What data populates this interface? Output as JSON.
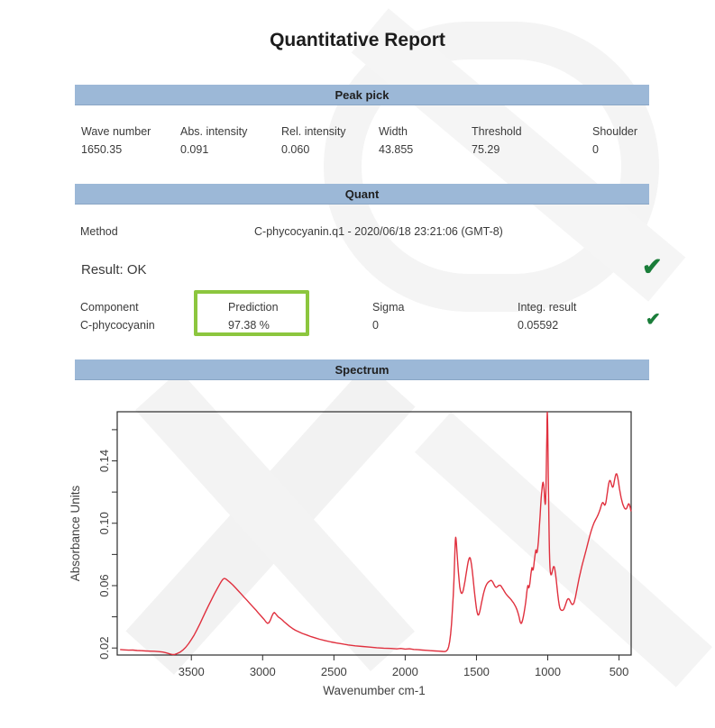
{
  "report": {
    "title": "Quantitative Report"
  },
  "sections": {
    "peak_pick": "Peak pick",
    "quant": "Quant",
    "spectrum": "Spectrum"
  },
  "peak_table": {
    "headers": [
      "Wave number",
      "Abs. intensity",
      "Rel. intensity",
      "Width",
      "Threshold",
      "Shoulder"
    ],
    "values": [
      "1650.35",
      "0.091",
      "0.060",
      "43.855",
      "75.29",
      "0"
    ]
  },
  "quant": {
    "method_label": "Method",
    "method_value": "C-phycocyanin.q1 - 2020/06/18 23:21:06 (GMT-8)",
    "result_text": "Result: OK",
    "component_headers": [
      "Component",
      "Prediction",
      "Sigma",
      "Integ. result"
    ],
    "component_values": [
      "C-phycocyanin",
      "97.38 %",
      "0",
      "0.05592"
    ],
    "check_glyph": "✔"
  },
  "colors": {
    "bar": "#9cb8d7",
    "bar-edge": "#8aa6c5",
    "line": "#e0303e",
    "check": "#1a7d39",
    "highlight": "#8cc63e",
    "text": "#3a3a3a"
  },
  "chart_data": {
    "type": "line",
    "title": "",
    "xlabel": "Wavenumber cm-1",
    "ylabel": "Absorbance Units",
    "legend": "none",
    "grid": false,
    "x_axis_reversed": true,
    "x_range": [
      4020,
      415
    ],
    "y_range": [
      0.0155,
      0.1715
    ],
    "x_ticks": [
      3500,
      3000,
      2500,
      2000,
      1500,
      1000,
      500
    ],
    "y_ticks": [
      0.02,
      0.06,
      0.1,
      0.14
    ],
    "y_minor_ticks": [
      0.02,
      0.04,
      0.06,
      0.08,
      0.1,
      0.12,
      0.14,
      0.16
    ],
    "line_color": "#e0303e",
    "points": [
      [
        4000,
        0.019
      ],
      [
        3970,
        0.0188
      ],
      [
        3940,
        0.0186
      ],
      [
        3910,
        0.0187
      ],
      [
        3880,
        0.0184
      ],
      [
        3850,
        0.0183
      ],
      [
        3820,
        0.0181
      ],
      [
        3790,
        0.018
      ],
      [
        3760,
        0.0179
      ],
      [
        3730,
        0.0177
      ],
      [
        3700,
        0.0174
      ],
      [
        3680,
        0.017
      ],
      [
        3660,
        0.0165
      ],
      [
        3645,
        0.0161
      ],
      [
        3630,
        0.0158
      ],
      [
        3615,
        0.0159
      ],
      [
        3600,
        0.0164
      ],
      [
        3580,
        0.0173
      ],
      [
        3560,
        0.0186
      ],
      [
        3540,
        0.0204
      ],
      [
        3520,
        0.0227
      ],
      [
        3500,
        0.0254
      ],
      [
        3480,
        0.0284
      ],
      [
        3460,
        0.0318
      ],
      [
        3440,
        0.0355
      ],
      [
        3420,
        0.0394
      ],
      [
        3400,
        0.0433
      ],
      [
        3380,
        0.0471
      ],
      [
        3360,
        0.0508
      ],
      [
        3340,
        0.0544
      ],
      [
        3320,
        0.0578
      ],
      [
        3300,
        0.061
      ],
      [
        3290,
        0.0626
      ],
      [
        3280,
        0.0639
      ],
      [
        3270,
        0.0646
      ],
      [
        3260,
        0.0644
      ],
      [
        3250,
        0.0637
      ],
      [
        3230,
        0.0622
      ],
      [
        3210,
        0.0605
      ],
      [
        3190,
        0.0586
      ],
      [
        3170,
        0.0566
      ],
      [
        3150,
        0.0546
      ],
      [
        3130,
        0.0526
      ],
      [
        3110,
        0.0506
      ],
      [
        3090,
        0.0486
      ],
      [
        3070,
        0.0466
      ],
      [
        3050,
        0.0446
      ],
      [
        3030,
        0.0425
      ],
      [
        3010,
        0.0404
      ],
      [
        2990,
        0.0383
      ],
      [
        2975,
        0.0366
      ],
      [
        2965,
        0.0358
      ],
      [
        2955,
        0.0363
      ],
      [
        2945,
        0.0381
      ],
      [
        2935,
        0.0405
      ],
      [
        2925,
        0.0422
      ],
      [
        2918,
        0.0428
      ],
      [
        2910,
        0.0421
      ],
      [
        2900,
        0.0409
      ],
      [
        2890,
        0.0399
      ],
      [
        2880,
        0.0393
      ],
      [
        2870,
        0.0386
      ],
      [
        2860,
        0.0378
      ],
      [
        2850,
        0.0369
      ],
      [
        2830,
        0.0353
      ],
      [
        2810,
        0.0338
      ],
      [
        2790,
        0.0325
      ],
      [
        2770,
        0.0314
      ],
      [
        2750,
        0.0305
      ],
      [
        2720,
        0.0293
      ],
      [
        2690,
        0.0283
      ],
      [
        2660,
        0.0273
      ],
      [
        2630,
        0.0264
      ],
      [
        2600,
        0.0256
      ],
      [
        2560,
        0.0247
      ],
      [
        2520,
        0.0239
      ],
      [
        2480,
        0.0232
      ],
      [
        2440,
        0.0226
      ],
      [
        2400,
        0.022
      ],
      [
        2350,
        0.0214
      ],
      [
        2300,
        0.021
      ],
      [
        2250,
        0.0206
      ],
      [
        2200,
        0.0202
      ],
      [
        2150,
        0.0199
      ],
      [
        2100,
        0.0197
      ],
      [
        2060,
        0.0194
      ],
      [
        2030,
        0.0197
      ],
      [
        2000,
        0.0193
      ],
      [
        1970,
        0.0195
      ],
      [
        1940,
        0.0191
      ],
      [
        1910,
        0.0189
      ],
      [
        1880,
        0.0187
      ],
      [
        1850,
        0.0185
      ],
      [
        1820,
        0.0183
      ],
      [
        1790,
        0.0181
      ],
      [
        1765,
        0.018
      ],
      [
        1740,
        0.0178
      ],
      [
        1725,
        0.0177
      ],
      [
        1712,
        0.018
      ],
      [
        1702,
        0.019
      ],
      [
        1695,
        0.0208
      ],
      [
        1688,
        0.024
      ],
      [
        1681,
        0.029
      ],
      [
        1675,
        0.0355
      ],
      [
        1669,
        0.0438
      ],
      [
        1663,
        0.0535
      ],
      [
        1658,
        0.0638
      ],
      [
        1654,
        0.0742
      ],
      [
        1651,
        0.083
      ],
      [
        1648,
        0.089
      ],
      [
        1646,
        0.091
      ],
      [
        1644,
        0.0903
      ],
      [
        1641,
        0.0872
      ],
      [
        1637,
        0.0818
      ],
      [
        1632,
        0.075
      ],
      [
        1627,
        0.0688
      ],
      [
        1622,
        0.0634
      ],
      [
        1617,
        0.0592
      ],
      [
        1612,
        0.0566
      ],
      [
        1607,
        0.0553
      ],
      [
        1602,
        0.055
      ],
      [
        1597,
        0.0557
      ],
      [
        1592,
        0.0573
      ],
      [
        1586,
        0.06
      ],
      [
        1580,
        0.0631
      ],
      [
        1574,
        0.0665
      ],
      [
        1568,
        0.0701
      ],
      [
        1562,
        0.0733
      ],
      [
        1557,
        0.0757
      ],
      [
        1552,
        0.0773
      ],
      [
        1548,
        0.078
      ],
      [
        1544,
        0.0777
      ],
      [
        1540,
        0.0763
      ],
      [
        1535,
        0.0736
      ],
      [
        1530,
        0.07
      ],
      [
        1525,
        0.0658
      ],
      [
        1520,
        0.0612
      ],
      [
        1515,
        0.0566
      ],
      [
        1510,
        0.0524
      ],
      [
        1505,
        0.0486
      ],
      [
        1500,
        0.0455
      ],
      [
        1496,
        0.0432
      ],
      [
        1492,
        0.0418
      ],
      [
        1488,
        0.0411
      ],
      [
        1484,
        0.0413
      ],
      [
        1480,
        0.0423
      ],
      [
        1475,
        0.0441
      ],
      [
        1470,
        0.0464
      ],
      [
        1464,
        0.0491
      ],
      [
        1458,
        0.0518
      ],
      [
        1452,
        0.0543
      ],
      [
        1446,
        0.0565
      ],
      [
        1440,
        0.0583
      ],
      [
        1434,
        0.0598
      ],
      [
        1428,
        0.0609
      ],
      [
        1422,
        0.0617
      ],
      [
        1416,
        0.0623
      ],
      [
        1410,
        0.0627
      ],
      [
        1404,
        0.0631
      ],
      [
        1398,
        0.0634
      ],
      [
        1392,
        0.0631
      ],
      [
        1386,
        0.0623
      ],
      [
        1380,
        0.0613
      ],
      [
        1374,
        0.0601
      ],
      [
        1368,
        0.0593
      ],
      [
        1362,
        0.0589
      ],
      [
        1356,
        0.0591
      ],
      [
        1350,
        0.0596
      ],
      [
        1344,
        0.0601
      ],
      [
        1338,
        0.0603
      ],
      [
        1332,
        0.0601
      ],
      [
        1326,
        0.0595
      ],
      [
        1320,
        0.0586
      ],
      [
        1312,
        0.0575
      ],
      [
        1304,
        0.0563
      ],
      [
        1296,
        0.0551
      ],
      [
        1288,
        0.0541
      ],
      [
        1280,
        0.0533
      ],
      [
        1272,
        0.0525
      ],
      [
        1264,
        0.0517
      ],
      [
        1256,
        0.0509
      ],
      [
        1248,
        0.0499
      ],
      [
        1240,
        0.0489
      ],
      [
        1232,
        0.0477
      ],
      [
        1224,
        0.0463
      ],
      [
        1216,
        0.0445
      ],
      [
        1210,
        0.0429
      ],
      [
        1205,
        0.0413
      ],
      [
        1200,
        0.0395
      ],
      [
        1196,
        0.0377
      ],
      [
        1192,
        0.0364
      ],
      [
        1188,
        0.0358
      ],
      [
        1184,
        0.0359
      ],
      [
        1180,
        0.0367
      ],
      [
        1175,
        0.0383
      ],
      [
        1170,
        0.0405
      ],
      [
        1165,
        0.0431
      ],
      [
        1160,
        0.046
      ],
      [
        1155,
        0.0491
      ],
      [
        1151,
        0.0521
      ],
      [
        1148,
        0.0549
      ],
      [
        1145,
        0.0573
      ],
      [
        1142,
        0.0591
      ],
      [
        1139,
        0.0601
      ],
      [
        1136,
        0.0596
      ],
      [
        1133,
        0.0586
      ],
      [
        1130,
        0.0591
      ],
      [
        1126,
        0.0611
      ],
      [
        1122,
        0.0641
      ],
      [
        1118,
        0.0673
      ],
      [
        1114,
        0.0701
      ],
      [
        1111,
        0.0716
      ],
      [
        1108,
        0.0711
      ],
      [
        1105,
        0.0699
      ],
      [
        1102,
        0.0703
      ],
      [
        1098,
        0.0726
      ],
      [
        1094,
        0.0759
      ],
      [
        1090,
        0.0791
      ],
      [
        1086,
        0.0816
      ],
      [
        1083,
        0.0829
      ],
      [
        1080,
        0.0823
      ],
      [
        1077,
        0.0811
      ],
      [
        1074,
        0.0816
      ],
      [
        1070,
        0.0841
      ],
      [
        1066,
        0.0881
      ],
      [
        1062,
        0.0931
      ],
      [
        1058,
        0.0986
      ],
      [
        1054,
        0.1046
      ],
      [
        1050,
        0.1106
      ],
      [
        1046,
        0.1161
      ],
      [
        1042,
        0.1206
      ],
      [
        1038,
        0.1241
      ],
      [
        1035,
        0.1259
      ],
      [
        1032,
        0.1263
      ],
      [
        1029,
        0.1249
      ],
      [
        1026,
        0.1216
      ],
      [
        1023,
        0.1173
      ],
      [
        1020,
        0.1136
      ],
      [
        1018,
        0.1121
      ],
      [
        1016,
        0.1131
      ],
      [
        1014,
        0.1171
      ],
      [
        1012,
        0.1241
      ],
      [
        1010,
        0.1341
      ],
      [
        1008,
        0.1461
      ],
      [
        1006,
        0.1581
      ],
      [
        1005,
        0.1656
      ],
      [
        1004,
        0.1701
      ],
      [
        1003,
        0.1712
      ],
      [
        1002,
        0.1691
      ],
      [
        1000,
        0.1601
      ],
      [
        998,
        0.1461
      ],
      [
        996,
        0.1301
      ],
      [
        994,
        0.1146
      ],
      [
        992,
        0.1011
      ],
      [
        990,
        0.0901
      ],
      [
        988,
        0.0816
      ],
      [
        986,
        0.0756
      ],
      [
        984,
        0.0716
      ],
      [
        982,
        0.0691
      ],
      [
        980,
        0.0676
      ],
      [
        977,
        0.0669
      ],
      [
        974,
        0.0671
      ],
      [
        970,
        0.0683
      ],
      [
        966,
        0.0701
      ],
      [
        962,
        0.0716
      ],
      [
        958,
        0.0723
      ],
      [
        954,
        0.0719
      ],
      [
        950,
        0.0703
      ],
      [
        945,
        0.0673
      ],
      [
        940,
        0.0633
      ],
      [
        935,
        0.0589
      ],
      [
        930,
        0.0545
      ],
      [
        925,
        0.0507
      ],
      [
        920,
        0.0477
      ],
      [
        915,
        0.0457
      ],
      [
        910,
        0.0447
      ],
      [
        905,
        0.0443
      ],
      [
        900,
        0.0441
      ],
      [
        895,
        0.0442
      ],
      [
        890,
        0.0445
      ],
      [
        885,
        0.0453
      ],
      [
        880,
        0.0465
      ],
      [
        875,
        0.0479
      ],
      [
        870,
        0.0493
      ],
      [
        865,
        0.0505
      ],
      [
        860,
        0.0513
      ],
      [
        855,
        0.0516
      ],
      [
        850,
        0.0513
      ],
      [
        845,
        0.0505
      ],
      [
        840,
        0.0495
      ],
      [
        835,
        0.0486
      ],
      [
        830,
        0.048
      ],
      [
        825,
        0.0479
      ],
      [
        820,
        0.0483
      ],
      [
        815,
        0.0493
      ],
      [
        810,
        0.0509
      ],
      [
        805,
        0.0529
      ],
      [
        800,
        0.0553
      ],
      [
        793,
        0.0586
      ],
      [
        786,
        0.0619
      ],
      [
        779,
        0.0651
      ],
      [
        772,
        0.0681
      ],
      [
        765,
        0.0709
      ],
      [
        758,
        0.0735
      ],
      [
        751,
        0.0759
      ],
      [
        744,
        0.0783
      ],
      [
        737,
        0.0807
      ],
      [
        730,
        0.0831
      ],
      [
        723,
        0.0856
      ],
      [
        716,
        0.0881
      ],
      [
        709,
        0.0906
      ],
      [
        702,
        0.0929
      ],
      [
        695,
        0.0951
      ],
      [
        688,
        0.0971
      ],
      [
        681,
        0.0989
      ],
      [
        674,
        0.1005
      ],
      [
        667,
        0.1019
      ],
      [
        660,
        0.1031
      ],
      [
        653,
        0.1043
      ],
      [
        646,
        0.1057
      ],
      [
        639,
        0.1073
      ],
      [
        632,
        0.1091
      ],
      [
        626,
        0.1109
      ],
      [
        621,
        0.1123
      ],
      [
        617,
        0.1131
      ],
      [
        613,
        0.1133
      ],
      [
        609,
        0.1129
      ],
      [
        605,
        0.1121
      ],
      [
        601,
        0.1116
      ],
      [
        597,
        0.1119
      ],
      [
        593,
        0.1131
      ],
      [
        589,
        0.1151
      ],
      [
        585,
        0.1176
      ],
      [
        581,
        0.1203
      ],
      [
        577,
        0.1229
      ],
      [
        573,
        0.1251
      ],
      [
        569,
        0.1267
      ],
      [
        565,
        0.1275
      ],
      [
        561,
        0.1273
      ],
      [
        557,
        0.1263
      ],
      [
        553,
        0.1249
      ],
      [
        549,
        0.1237
      ],
      [
        545,
        0.1231
      ],
      [
        541,
        0.1235
      ],
      [
        537,
        0.1249
      ],
      [
        533,
        0.1269
      ],
      [
        529,
        0.1289
      ],
      [
        525,
        0.1305
      ],
      [
        521,
        0.1315
      ],
      [
        517,
        0.1317
      ],
      [
        513,
        0.1309
      ],
      [
        509,
        0.1293
      ],
      [
        505,
        0.1271
      ],
      [
        501,
        0.1247
      ],
      [
        497,
        0.1223
      ],
      [
        493,
        0.1201
      ],
      [
        489,
        0.1181
      ],
      [
        485,
        0.1163
      ],
      [
        481,
        0.1147
      ],
      [
        477,
        0.1133
      ],
      [
        473,
        0.1121
      ],
      [
        469,
        0.1111
      ],
      [
        465,
        0.1103
      ],
      [
        461,
        0.1097
      ],
      [
        457,
        0.1093
      ],
      [
        453,
        0.1091
      ],
      [
        449,
        0.1093
      ],
      [
        445,
        0.1099
      ],
      [
        441,
        0.1109
      ],
      [
        437,
        0.1119
      ],
      [
        433,
        0.1125
      ],
      [
        429,
        0.1123
      ],
      [
        425,
        0.1113
      ],
      [
        421,
        0.1099
      ],
      [
        418,
        0.1086
      ],
      [
        415,
        0.1076
      ]
    ]
  }
}
